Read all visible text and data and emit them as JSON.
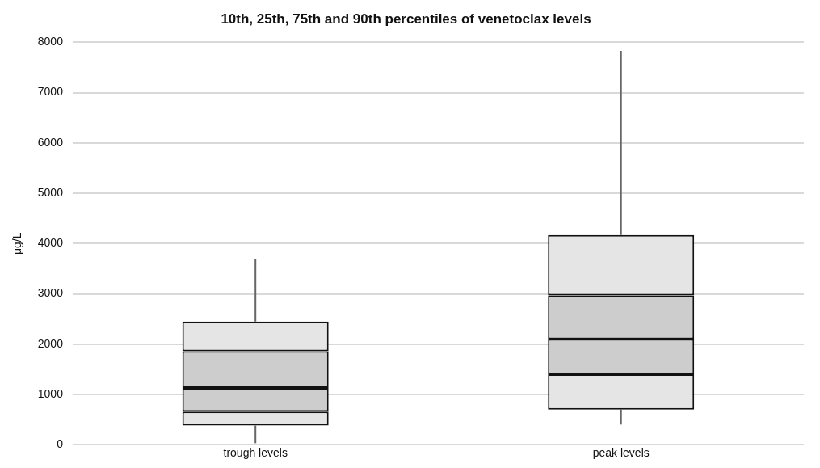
{
  "chart_data": {
    "type": "bar",
    "title": "10th, 25th, 75th and 90th percentiles of venetoclax levels",
    "ylabel": "μg/L",
    "categories": [
      "trough levels",
      "peak levels"
    ],
    "series": [
      {
        "color": "#e5e5e5",
        "base": [
          380,
          700
        ],
        "values": [
          280,
          700
        ],
        "errors": [
          [
            30,
            380
          ],
          [
            400,
            700
          ]
        ]
      },
      {
        "color": "#cdcdcd",
        "base": [
          660,
          1400
        ],
        "values": [
          470,
          700
        ]
      },
      {
        "color": "#cdcdcd",
        "base": [
          1130,
          2100
        ],
        "values": [
          730,
          870
        ]
      },
      {
        "color": "#e5e5e5",
        "base": [
          1860,
          2970
        ],
        "values": [
          590,
          1200
        ],
        "errors": [
          [
            2450,
            3700
          ],
          [
            4170,
            7830
          ]
        ]
      }
    ],
    "ylim": [
      0,
      8000
    ],
    "yticks": [
      0,
      1000,
      2000,
      3000,
      4000,
      5000,
      6000,
      7000,
      8000
    ],
    "grid": "y",
    "legend": false
  }
}
